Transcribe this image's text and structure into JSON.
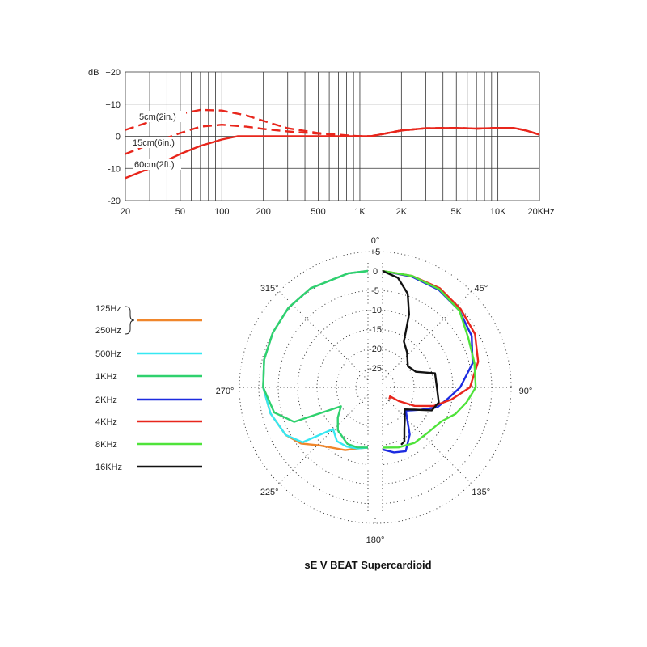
{
  "title": "sE V BEAT Supercardioid",
  "chart_data": [
    {
      "type": "line",
      "name": "frequency-response",
      "xscale": "log",
      "xlim": [
        20,
        20000
      ],
      "ylim": [
        -20,
        20
      ],
      "yunit_label": "dB",
      "ytick_labels": [
        "+20",
        "+10",
        "0",
        "-10",
        "-20"
      ],
      "ytick_values": [
        20,
        10,
        0,
        -10,
        -20
      ],
      "xtick_labels": [
        "20",
        "50",
        "100",
        "200",
        "500",
        "1K",
        "2K",
        "5K",
        "10K",
        "20KHz"
      ],
      "xtick_values": [
        20,
        50,
        100,
        200,
        500,
        1000,
        2000,
        5000,
        10000,
        20000
      ],
      "grid": true,
      "series": [
        {
          "name": "5cm(2in.)",
          "style": "dashed",
          "color": "#e8261c",
          "points": [
            [
              20,
              2
            ],
            [
              30,
              4.5
            ],
            [
              50,
              7
            ],
            [
              70,
              8.2
            ],
            [
              100,
              8
            ],
            [
              150,
              6.5
            ],
            [
              200,
              4.8
            ],
            [
              300,
              2.5
            ],
            [
              500,
              1
            ],
            [
              800,
              0.3
            ],
            [
              1000,
              0
            ],
            [
              1200,
              0
            ],
            [
              2000,
              1.8
            ],
            [
              3000,
              2.5
            ],
            [
              5000,
              2.6
            ],
            [
              7000,
              2.4
            ],
            [
              10000,
              2.6
            ],
            [
              13000,
              2.6
            ],
            [
              16000,
              1.8
            ],
            [
              20000,
              0.5
            ]
          ]
        },
        {
          "name": "15cm(6in.)",
          "style": "dashed",
          "color": "#e8261c",
          "points": [
            [
              20,
              -5.5
            ],
            [
              30,
              -2.5
            ],
            [
              50,
              1
            ],
            [
              70,
              3
            ],
            [
              100,
              3.6
            ],
            [
              150,
              3
            ],
            [
              200,
              2.3
            ],
            [
              300,
              1.5
            ],
            [
              500,
              0.8
            ],
            [
              800,
              0.2
            ],
            [
              1000,
              0
            ],
            [
              1200,
              0
            ],
            [
              2000,
              1.8
            ],
            [
              3000,
              2.5
            ],
            [
              5000,
              2.6
            ],
            [
              7000,
              2.4
            ],
            [
              10000,
              2.6
            ],
            [
              13000,
              2.6
            ],
            [
              16000,
              1.8
            ],
            [
              20000,
              0.5
            ]
          ]
        },
        {
          "name": "60cm(2ft.)",
          "style": "solid",
          "color": "#e8261c",
          "points": [
            [
              20,
              -13
            ],
            [
              30,
              -10
            ],
            [
              50,
              -5.5
            ],
            [
              70,
              -3
            ],
            [
              100,
              -1
            ],
            [
              130,
              0
            ],
            [
              200,
              0
            ],
            [
              500,
              0
            ],
            [
              1000,
              0
            ],
            [
              1200,
              0
            ],
            [
              2000,
              1.8
            ],
            [
              3000,
              2.5
            ],
            [
              5000,
              2.6
            ],
            [
              7000,
              2.4
            ],
            [
              10000,
              2.6
            ],
            [
              13000,
              2.6
            ],
            [
              16000,
              1.8
            ],
            [
              20000,
              0.5
            ]
          ]
        }
      ]
    },
    {
      "type": "polar",
      "name": "polar-pattern",
      "radial_range_db": [
        -30,
        5
      ],
      "radial_tick_labels": [
        "+5",
        "0",
        "-5",
        "-10",
        "-15",
        "-20",
        "-25"
      ],
      "radial_tick_values": [
        5,
        0,
        -5,
        -10,
        -15,
        -20,
        -25
      ],
      "angle_labels": [
        "0°",
        "45°",
        "90°",
        "135°",
        "180°",
        "225°",
        "270°",
        "315°"
      ],
      "angle_values": [
        0,
        45,
        90,
        135,
        180,
        225,
        270,
        315
      ],
      "grid": "dotted",
      "legend": {
        "placement": "left",
        "entries": [
          {
            "label_top": "125Hz",
            "label_bottom": "250Hz",
            "color": "#f0862b"
          },
          {
            "label": "500Hz",
            "color": "#36e8f2"
          },
          {
            "label": "1KHz",
            "color": "#2fd16e"
          },
          {
            "label": "2KHz",
            "color": "#1c2be0"
          },
          {
            "label": "4KHz",
            "color": "#e8261c"
          },
          {
            "label": "8KHz",
            "color": "#4fe33a"
          },
          {
            "label": "16KHz",
            "color": "#111111"
          }
        ]
      },
      "left_half_series": [
        {
          "name": "125Hz / 250Hz",
          "color": "#f0862b",
          "points": [
            [
              0,
              0
            ],
            [
              10,
              -0.2
            ],
            [
              30,
              -0.5
            ],
            [
              45,
              -1
            ],
            [
              60,
              -1.7
            ],
            [
              75,
              -2.3
            ],
            [
              90,
              -3
            ],
            [
              105,
              -4
            ],
            [
              120,
              -5.5
            ],
            [
              130,
              -7.5
            ],
            [
              140,
              -10.5
            ],
            [
              150,
              -12
            ],
            [
              160,
              -12.8
            ],
            [
              170,
              -14
            ],
            [
              180,
              -14.5
            ]
          ]
        },
        {
          "name": "500Hz",
          "color": "#36e8f2",
          "points": [
            [
              0,
              0
            ],
            [
              10,
              -0.2
            ],
            [
              30,
              -0.5
            ],
            [
              45,
              -1
            ],
            [
              60,
              -1.7
            ],
            [
              75,
              -2.3
            ],
            [
              90,
              -3
            ],
            [
              105,
              -4
            ],
            [
              120,
              -5.5
            ],
            [
              130,
              -8
            ],
            [
              140,
              -16
            ],
            [
              150,
              -14
            ],
            [
              160,
              -13.8
            ],
            [
              170,
              -14
            ],
            [
              180,
              -14.5
            ]
          ]
        },
        {
          "name": "1KHz",
          "color": "#2fd16e",
          "points": [
            [
              0,
              0
            ],
            [
              10,
              -0.2
            ],
            [
              30,
              -0.5
            ],
            [
              45,
              -1
            ],
            [
              60,
              -1.7
            ],
            [
              75,
              -2.3
            ],
            [
              90,
              -3
            ],
            [
              105,
              -5
            ],
            [
              115,
              -9
            ],
            [
              125,
              -21.5
            ],
            [
              135,
              -19
            ],
            [
              145,
              -16.5
            ],
            [
              160,
              -14.5
            ],
            [
              170,
              -14.3
            ],
            [
              180,
              -14.5
            ]
          ]
        }
      ],
      "right_half_series": [
        {
          "name": "2KHz",
          "color": "#1c2be0",
          "points": [
            [
              0,
              0
            ],
            [
              15,
              -0.5
            ],
            [
              30,
              -1
            ],
            [
              45,
              -2
            ],
            [
              60,
              -3.5
            ],
            [
              75,
              -6
            ],
            [
              90,
              -10
            ],
            [
              100,
              -13
            ],
            [
              110,
              -15
            ],
            [
              120,
              -18.5
            ],
            [
              135,
              -21.5
            ],
            [
              150,
              -16
            ],
            [
              160,
              -12.5
            ],
            [
              170,
              -13
            ],
            [
              180,
              -14
            ]
          ]
        },
        {
          "name": "4KHz",
          "color": "#e8261c",
          "points": [
            [
              0,
              0
            ],
            [
              15,
              -0.3
            ],
            [
              30,
              -0.5
            ],
            [
              45,
              -1.5
            ],
            [
              60,
              -2.5
            ],
            [
              75,
              -4.5
            ],
            [
              90,
              -7.5
            ],
            [
              100,
              -12
            ],
            [
              110,
              -16
            ],
            [
              120,
              -20.5
            ],
            [
              130,
              -24.5
            ],
            [
              140,
              -27
            ],
            [
              150,
              -26.5
            ]
          ]
        },
        {
          "name": "8KHz",
          "color": "#4fe33a",
          "points": [
            [
              0,
              0
            ],
            [
              15,
              -0.3
            ],
            [
              30,
              -0.8
            ],
            [
              45,
              -2
            ],
            [
              60,
              -4.5
            ],
            [
              75,
              -5.5
            ],
            [
              90,
              -6
            ],
            [
              100,
              -8
            ],
            [
              110,
              -10
            ],
            [
              120,
              -12.5
            ],
            [
              135,
              -13.5
            ],
            [
              150,
              -13.5
            ],
            [
              165,
              -14
            ],
            [
              180,
              -14.5
            ]
          ]
        },
        {
          "name": "16KHz",
          "color": "#111111",
          "points": [
            [
              0,
              0
            ],
            [
              8,
              -1.5
            ],
            [
              15,
              -5
            ],
            [
              20,
              -10
            ],
            [
              25,
              -17
            ],
            [
              35,
              -19
            ],
            [
              50,
              -21.5
            ],
            [
              65,
              -20.5
            ],
            [
              75,
              -16
            ],
            [
              90,
              -16
            ],
            [
              105,
              -15
            ],
            [
              115,
              -16
            ],
            [
              125,
              -20
            ],
            [
              135,
              -22
            ],
            [
              145,
              -20
            ],
            [
              152,
              -18
            ],
            [
              158,
              -15
            ],
            [
              162,
              -14.5
            ]
          ]
        }
      ]
    }
  ]
}
